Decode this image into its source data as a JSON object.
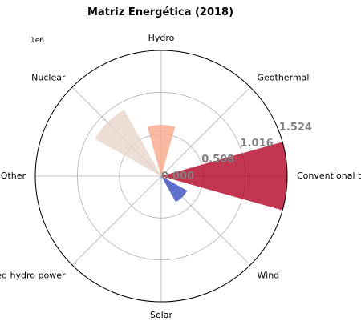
{
  "chart_data": {
    "type": "polar-bar",
    "title": "Matriz Energética (2018)",
    "scale_label": "1e6",
    "categories": [
      "Conventional thermal",
      "Geothermal",
      "Hydro",
      "Nuclear",
      "Other",
      "Pumped hydro power",
      "Solar",
      "Wind"
    ],
    "values": [
      1524000,
      0,
      620000,
      920000,
      0,
      0,
      40000,
      360000
    ],
    "colors": [
      "#b40426",
      "#cf453c",
      "#f7a889",
      "#e7d4cb",
      "#dddcdc",
      "#aac7fd",
      "#7597f6",
      "#3b4cc0"
    ],
    "rticks": [
      0,
      508000,
      1016000,
      1524000
    ],
    "rtick_labels": [
      "0.000",
      "0.508",
      "1.016",
      "1.524"
    ],
    "rmax": 1524000,
    "bar_width_fraction": 0.35,
    "grid": true
  }
}
